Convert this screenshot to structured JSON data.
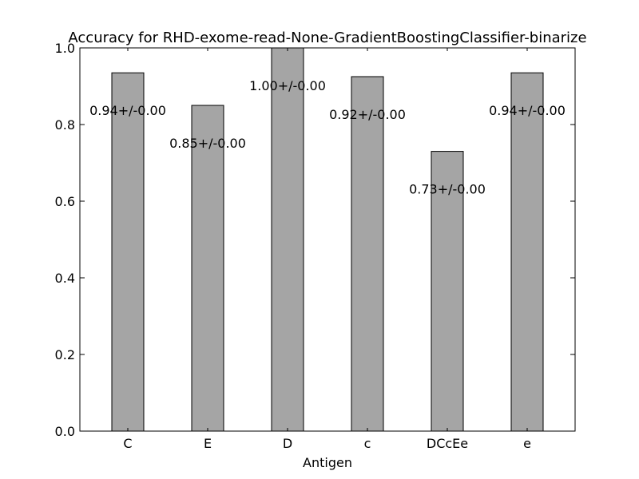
{
  "chart_data": {
    "type": "bar",
    "title": "Accuracy for RHD-exome-read-None-GradientBoostingClassifier-binarize",
    "xlabel": "Antigen",
    "ylabel": "",
    "categories": [
      "C",
      "E",
      "D",
      "c",
      "DCcEe",
      "e"
    ],
    "values": [
      0.935,
      0.85,
      1.0,
      0.925,
      0.73,
      0.935
    ],
    "data_labels": [
      "0.94+/-0.00",
      "0.85+/-0.00",
      "1.00+/-0.00",
      "0.92+/-0.00",
      "0.73+/-0.00",
      "0.94+/-0.00"
    ],
    "ylim": [
      0.0,
      1.0
    ],
    "yticks": [
      "0.0",
      "0.2",
      "0.4",
      "0.6",
      "0.8",
      "1.0"
    ],
    "grid": false,
    "bar_color": "#a5a5a5",
    "edge_color": "#000000"
  }
}
